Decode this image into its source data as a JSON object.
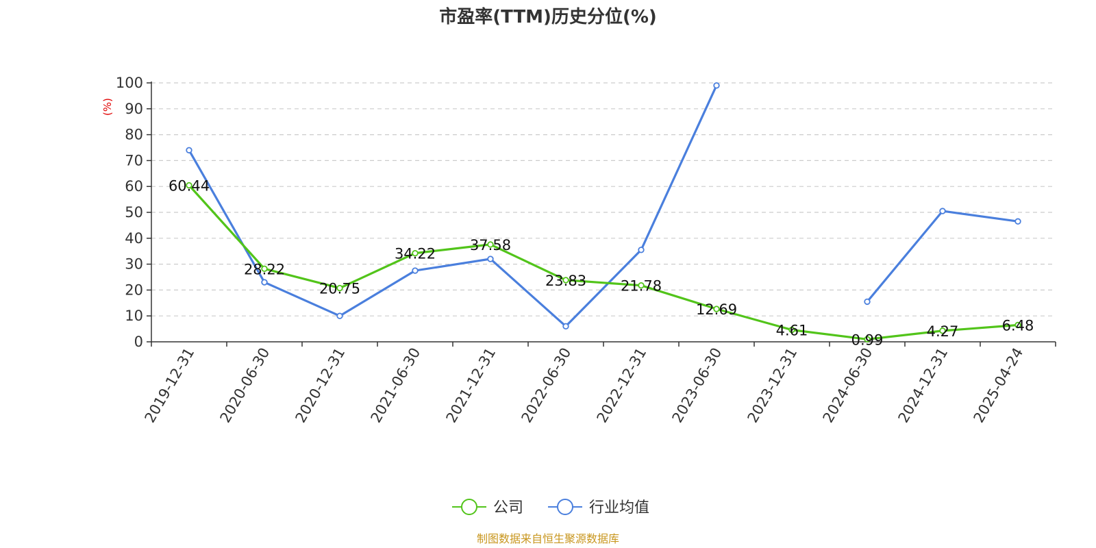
{
  "chart_data": {
    "type": "line",
    "title": "市盈率(TTM)历史分位(%)",
    "ylabel": "(%)",
    "xlabel": "",
    "ylim": [
      0,
      100
    ],
    "y_ticks": [
      0,
      10,
      20,
      30,
      40,
      50,
      60,
      70,
      80,
      90,
      100
    ],
    "grid": true,
    "legend_position": "bottom",
    "categories": [
      "2019-12-31",
      "2020-06-30",
      "2020-12-31",
      "2021-06-30",
      "2021-12-31",
      "2022-06-30",
      "2022-12-31",
      "2023-06-30",
      "2023-12-31",
      "2024-06-30",
      "2024-12-31",
      "2025-04-24"
    ],
    "series": [
      {
        "name": "公司",
        "color": "#52c41a",
        "show_labels": true,
        "values": [
          60.44,
          28.22,
          20.75,
          34.22,
          37.58,
          23.83,
          21.78,
          12.69,
          4.61,
          0.99,
          4.27,
          6.48
        ],
        "labels": [
          "60.44",
          "28.22",
          "20.75",
          "34.22",
          "37.58",
          "23.83",
          "21.78",
          "12.69",
          "4.61",
          "0.99",
          "4.27",
          "6.48"
        ]
      },
      {
        "name": "行业均值",
        "color": "#4a7fdd",
        "show_labels": false,
        "values": [
          74,
          23,
          10,
          27.5,
          32,
          6,
          35.5,
          99,
          null,
          15.5,
          50.5,
          46.5
        ]
      }
    ],
    "source": "制图数据来自恒生聚源数据库",
    "unit_color": "#e00000",
    "source_color": "#c8961e",
    "axis_color": "#333333",
    "grid_color": "#cccccc"
  }
}
